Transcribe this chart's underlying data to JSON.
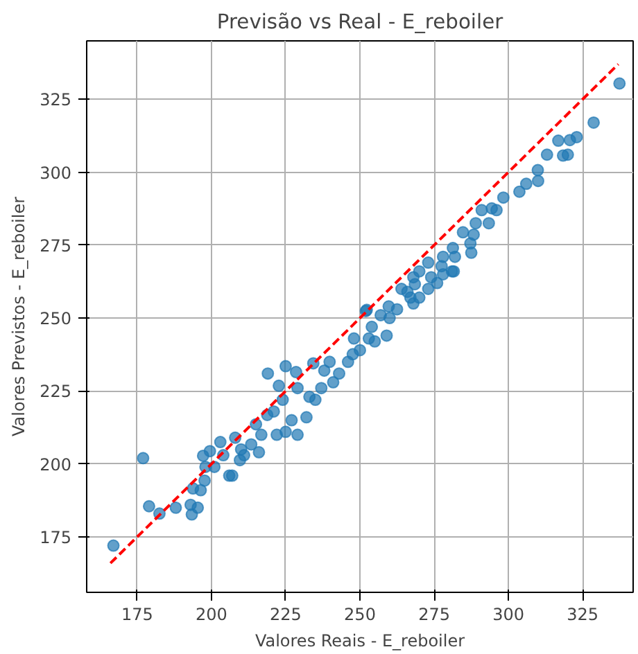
{
  "chart_data": {
    "type": "scatter",
    "title": "Previsão vs Real - E_reboiler",
    "xlabel": "Valores Reais - E_reboiler",
    "ylabel": "Valores Previstos - E_reboiler",
    "xlim": [
      158,
      342
    ],
    "ylim": [
      156,
      345
    ],
    "xticks": [
      175,
      200,
      225,
      250,
      275,
      300,
      325
    ],
    "yticks": [
      175,
      200,
      225,
      250,
      275,
      300,
      325
    ],
    "grid": true,
    "marker": "circle",
    "series": [
      {
        "color": "#1f77b4",
        "x": [
          167,
          177,
          179,
          182.5,
          188,
          193,
          193.4,
          195.4,
          193.8,
          196.4,
          197.7,
          197.2,
          198,
          199.5,
          201,
          203,
          204,
          206,
          207,
          208,
          209.6,
          210,
          211,
          213.4,
          215,
          216,
          216.8,
          218.8,
          219,
          221,
          222,
          222.7,
          224,
          225,
          225,
          227,
          229,
          228.5,
          229,
          232,
          233,
          234.3,
          235,
          237,
          238,
          239.8,
          241,
          243,
          246,
          247.6,
          248,
          250,
          252,
          253,
          254,
          255,
          259,
          260,
          262.5,
          266,
          268,
          268.5,
          270,
          273,
          274,
          276,
          278,
          281.6,
          337.4,
          328.7,
          320.7,
          323,
          316.8,
          313,
          320,
          318.4,
          309.9,
          310,
          306,
          303.7,
          298.3,
          296,
          294.4,
          291,
          293.4,
          289,
          288.3,
          284.7,
          287.2,
          281.3,
          287.5,
          282,
          278,
          277.5,
          281,
          273,
          270,
          268,
          264,
          267,
          259.7,
          252.3,
          257
        ],
        "values": [
          172,
          202,
          185.5,
          183,
          185,
          186,
          182.7,
          185,
          191.6,
          191,
          194.3,
          202.8,
          199,
          204.4,
          199,
          207.5,
          203,
          196,
          196,
          209,
          201.3,
          205,
          203,
          206.7,
          213.6,
          204,
          210,
          216.8,
          231,
          218,
          210,
          226.8,
          222,
          233.5,
          211,
          215,
          210,
          231.5,
          226,
          216,
          223,
          234.5,
          222,
          226,
          232,
          235,
          228,
          231,
          235,
          237.6,
          243,
          239,
          252.4,
          243,
          247,
          242,
          244,
          250,
          253,
          259,
          255,
          261.6,
          257,
          260,
          264,
          262,
          265,
          266,
          330.4,
          317,
          311,
          312,
          310.8,
          306,
          306,
          305.7,
          300.7,
          297,
          296,
          293.3,
          291.3,
          287,
          287.6,
          287,
          282.5,
          282.5,
          278.6,
          279.4,
          275.6,
          274,
          272.4,
          271,
          271,
          267.8,
          266,
          269,
          266,
          264,
          260,
          257,
          254,
          252.8,
          251
        ]
      },
      {
        "type": "line",
        "color": "#ff0000",
        "line_style": "dashed",
        "marker": "none",
        "x": [
          166,
          337
        ],
        "values": [
          166,
          337
        ]
      }
    ]
  }
}
